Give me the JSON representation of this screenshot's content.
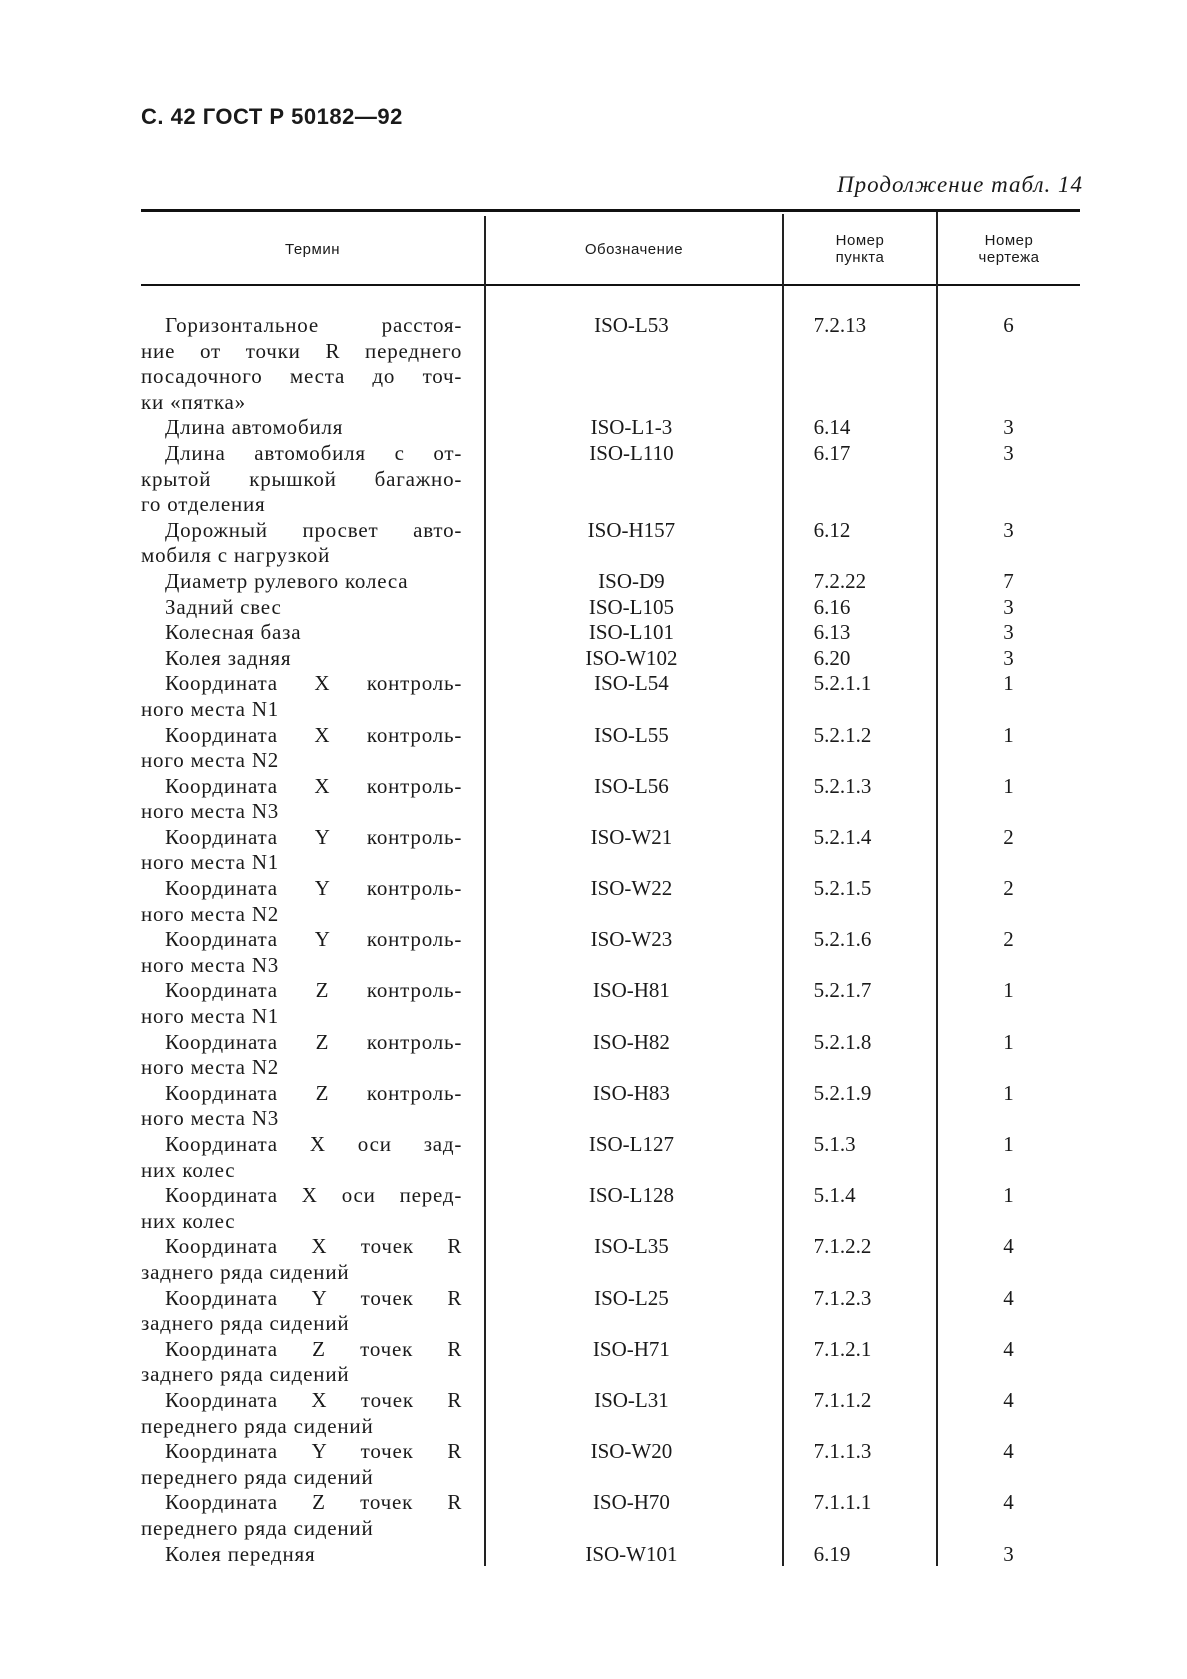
{
  "page_header": "С. 42 ГОСТ Р 50182—92",
  "continuation": "Продолжение табл. 14",
  "columns": {
    "term": "Термин",
    "designation": "Обозначение",
    "clause": "Номер пункта",
    "drawing": "Номер чертежа"
  },
  "rows": [
    {
      "term": [
        "Горизонтальное расстоя-",
        "ние от точки R переднего",
        "посадочного места до точ-",
        "ки «пятка»"
      ],
      "designation": "ISO-L53",
      "clause": "7.2.13",
      "drawing": "6"
    },
    {
      "term": [
        "Длина автомобиля"
      ],
      "designation": "ISO-L1-3",
      "clause": "6.14",
      "drawing": "3"
    },
    {
      "term": [
        "Длина автомобиля с от-",
        "крытой крышкой багажно-",
        "го отделения"
      ],
      "designation": "ISO-L110",
      "clause": "6.17",
      "drawing": "3"
    },
    {
      "term": [
        "Дорожный просвет авто-",
        "мобиля с нагрузкой"
      ],
      "designation": "ISO-H157",
      "clause": "6.12",
      "drawing": "3"
    },
    {
      "term": [
        "Диаметр рулевого колеса"
      ],
      "designation": "ISO-D9",
      "clause": "7.2.22",
      "drawing": "7"
    },
    {
      "term": [
        "Задний свес"
      ],
      "designation": "ISO-L105",
      "clause": "6.16",
      "drawing": "3"
    },
    {
      "term": [
        "Колесная база"
      ],
      "designation": "ISO-L101",
      "clause": "6.13",
      "drawing": "3"
    },
    {
      "term": [
        "Колея задняя"
      ],
      "designation": "ISO-W102",
      "clause": "6.20",
      "drawing": "3"
    },
    {
      "term": [
        "Координата X контроль-",
        "ного места N1"
      ],
      "designation": "ISO-L54",
      "clause": "5.2.1.1",
      "drawing": "1"
    },
    {
      "term": [
        "Координата X контроль-",
        "ного места N2"
      ],
      "designation": "ISO-L55",
      "clause": "5.2.1.2",
      "drawing": "1"
    },
    {
      "term": [
        "Координата X контроль-",
        "ного места N3"
      ],
      "designation": "ISO-L56",
      "clause": "5.2.1.3",
      "drawing": "1"
    },
    {
      "term": [
        "Координата Y контроль-",
        "ного места N1"
      ],
      "designation": "ISO-W21",
      "clause": "5.2.1.4",
      "drawing": "2"
    },
    {
      "term": [
        "Координата Y контроль-",
        "ного места N2"
      ],
      "designation": "ISO-W22",
      "clause": "5.2.1.5",
      "drawing": "2"
    },
    {
      "term": [
        "Координата Y контроль-",
        "ного места N3"
      ],
      "designation": "ISO-W23",
      "clause": "5.2.1.6",
      "drawing": "2"
    },
    {
      "term": [
        "Координата Z контроль-",
        "ного места N1"
      ],
      "designation": "ISO-H81",
      "clause": "5.2.1.7",
      "drawing": "1"
    },
    {
      "term": [
        "Координата Z контроль-",
        "ного места N2"
      ],
      "designation": "ISO-H82",
      "clause": "5.2.1.8",
      "drawing": "1"
    },
    {
      "term": [
        "Координата Z контроль-",
        "ного места N3"
      ],
      "designation": "ISO-H83",
      "clause": "5.2.1.9",
      "drawing": "1"
    },
    {
      "term": [
        "Координата X оси зад-",
        "них колес"
      ],
      "designation": "ISO-L127",
      "clause": "5.1.3",
      "drawing": "1"
    },
    {
      "term": [
        "Координата X оси перед-",
        "них колес"
      ],
      "designation": "ISO-L128",
      "clause": "5.1.4",
      "drawing": "1"
    },
    {
      "term": [
        "Координата X точек R",
        "заднего ряда сидений"
      ],
      "designation": "ISO-L35",
      "clause": "7.1.2.2",
      "drawing": "4"
    },
    {
      "term": [
        "Координата Y точек R",
        "заднего ряда сидений"
      ],
      "designation": "ISO-L25",
      "clause": "7.1.2.3",
      "drawing": "4"
    },
    {
      "term": [
        "Координата Z точек R",
        "заднего ряда сидений"
      ],
      "designation": "ISO-H71",
      "clause": "7.1.2.1",
      "drawing": "4"
    },
    {
      "term": [
        "Координата X точек R",
        "переднего ряда сидений"
      ],
      "designation": "ISO-L31",
      "clause": "7.1.1.2",
      "drawing": "4"
    },
    {
      "term": [
        "Координата Y точек R",
        "переднего ряда сидений"
      ],
      "designation": "ISO-W20",
      "clause": "7.1.1.3",
      "drawing": "4"
    },
    {
      "term": [
        "Координата Z точек R",
        "переднего ряда сидений"
      ],
      "designation": "ISO-H70",
      "clause": "7.1.1.1",
      "drawing": "4"
    },
    {
      "term": [
        "Колея передняя"
      ],
      "designation": "ISO-W101",
      "clause": "6.19",
      "drawing": "3"
    }
  ]
}
